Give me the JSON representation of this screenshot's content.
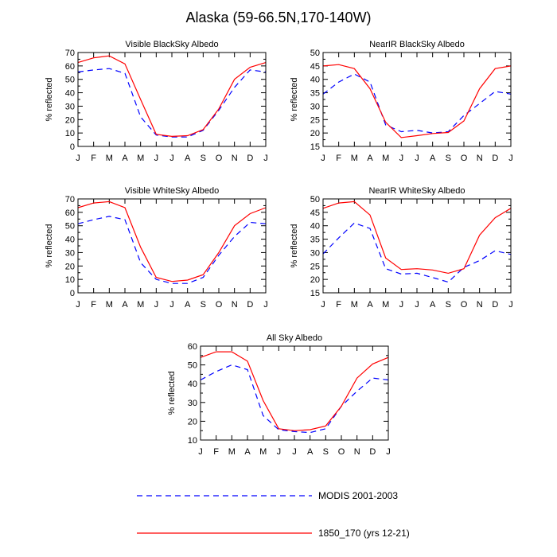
{
  "figure": {
    "title": "Alaska (59-66.5N,170-140W)",
    "legend": [
      {
        "label": "MODIS 2001-2003",
        "color": "#0000ff",
        "style": "dashed"
      },
      {
        "label": "1850_170 (yrs 12-21)",
        "color": "#ff0000",
        "style": "solid"
      }
    ]
  },
  "chart_data": [
    {
      "type": "line",
      "title": "Visible BlackSky Albedo",
      "ylabel": "% reflected",
      "categories": [
        "J",
        "F",
        "M",
        "A",
        "M",
        "J",
        "J",
        "A",
        "S",
        "O",
        "N",
        "D",
        "J"
      ],
      "ylim": [
        0,
        70
      ],
      "yticks": [
        0,
        10,
        20,
        30,
        40,
        50,
        60,
        70
      ],
      "series": [
        {
          "values": [
            55.5,
            57,
            58,
            54.5,
            22,
            8.5,
            7,
            7,
            12,
            27,
            44,
            57,
            55.5
          ],
          "color": "#0000ff",
          "dash": "dashed"
        },
        {
          "values": [
            62.5,
            66,
            67.5,
            61.5,
            35,
            9,
            7.5,
            8,
            12.5,
            28,
            50,
            59,
            62.5
          ],
          "color": "#ff0000",
          "dash": "solid"
        }
      ]
    },
    {
      "type": "line",
      "title": "NearIR BlackSky Albedo",
      "ylabel": "% reflected",
      "categories": [
        "J",
        "F",
        "M",
        "A",
        "M",
        "J",
        "J",
        "A",
        "S",
        "O",
        "N",
        "D",
        "J"
      ],
      "ylim": [
        15,
        50
      ],
      "yticks": [
        15,
        20,
        25,
        30,
        35,
        40,
        45,
        50
      ],
      "series": [
        {
          "values": [
            34.5,
            39,
            42,
            39,
            23,
            20.5,
            21,
            20,
            20.5,
            26.5,
            31,
            35.5,
            34.5
          ],
          "color": "#0000ff",
          "dash": "dashed"
        },
        {
          "values": [
            45,
            45.5,
            44,
            36.5,
            24,
            18.3,
            19,
            19.8,
            20.2,
            24.5,
            36.5,
            44,
            45
          ],
          "color": "#ff0000",
          "dash": "solid"
        }
      ]
    },
    {
      "type": "line",
      "title": "Visible WhiteSky Albedo",
      "ylabel": "% reflected",
      "categories": [
        "J",
        "F",
        "M",
        "A",
        "M",
        "J",
        "J",
        "A",
        "S",
        "O",
        "N",
        "D",
        "J"
      ],
      "ylim": [
        0,
        70
      ],
      "yticks": [
        0,
        10,
        20,
        30,
        40,
        50,
        60,
        70
      ],
      "series": [
        {
          "values": [
            51.5,
            54.5,
            57,
            54.5,
            22.5,
            10,
            7,
            7,
            11.5,
            28,
            42,
            52.5,
            51.5
          ],
          "color": "#0000ff",
          "dash": "dashed"
        },
        {
          "values": [
            63.5,
            67,
            68,
            63.5,
            34,
            11.5,
            8.5,
            9.5,
            13.5,
            30,
            50,
            59,
            63.5
          ],
          "color": "#ff0000",
          "dash": "solid"
        }
      ]
    },
    {
      "type": "line",
      "title": "NearIR WhiteSky Albedo",
      "ylabel": "% reflected",
      "categories": [
        "J",
        "F",
        "M",
        "A",
        "M",
        "J",
        "J",
        "A",
        "S",
        "O",
        "N",
        "D",
        "J"
      ],
      "ylim": [
        15,
        50
      ],
      "yticks": [
        15,
        20,
        25,
        30,
        35,
        40,
        45,
        50
      ],
      "series": [
        {
          "values": [
            29.5,
            35.5,
            41,
            39,
            24,
            22,
            22.3,
            20.7,
            19,
            24.5,
            27,
            30.7,
            29.3
          ],
          "color": "#0000ff",
          "dash": "dashed"
        },
        {
          "values": [
            46.5,
            48.5,
            49,
            44,
            28,
            23.7,
            24,
            23.5,
            22.3,
            24,
            36.5,
            43,
            46.5
          ],
          "color": "#ff0000",
          "dash": "solid"
        }
      ]
    },
    {
      "type": "line",
      "title": "All Sky Albedo",
      "ylabel": "% reflected",
      "categories": [
        "J",
        "F",
        "M",
        "A",
        "M",
        "J",
        "J",
        "A",
        "S",
        "O",
        "N",
        "D",
        "J"
      ],
      "ylim": [
        10,
        60
      ],
      "yticks": [
        10,
        20,
        30,
        40,
        50,
        60
      ],
      "series": [
        {
          "values": [
            42,
            46.5,
            50,
            47.5,
            23,
            15.5,
            14.5,
            14,
            16,
            28,
            36,
            43,
            42
          ],
          "color": "#0000ff",
          "dash": "dashed"
        },
        {
          "values": [
            54,
            57,
            57,
            52,
            31,
            16,
            15,
            15.5,
            17.5,
            28,
            43,
            50.5,
            54
          ],
          "color": "#ff0000",
          "dash": "solid"
        }
      ]
    }
  ]
}
